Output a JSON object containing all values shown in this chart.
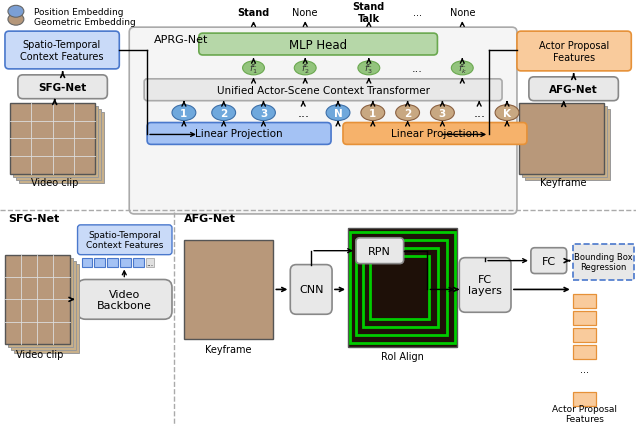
{
  "bg_color": "#ffffff",
  "legend_pos_emb_color": "#7b9fd4",
  "legend_geo_emb_color": "#b5977a",
  "spatio_box_color": "#c9daf8",
  "sfg_box_color": "#e8e8e8",
  "afg_box_color": "#f9cb9c",
  "mlp_head_color": "#b6d7a8",
  "transformer_box_color": "#e8e8e8",
  "linear_proj_blue_color": "#a4c2f4",
  "linear_proj_orange_color": "#f6b26b",
  "aprg_box_color": "#f5f5f5",
  "token_blue_color": "#6fa8dc",
  "token_brown_color": "#c8a882",
  "token_green_color": "#93c47d",
  "gray_box_color": "#e8e8e8",
  "green_roi_color": "#00cc00",
  "labels": {
    "position_embedding": "Position Embedding",
    "geometric_embedding": "Geometric Embedding",
    "spatio_temporal": "Spatio-Temporal\nContext Features",
    "sfg_net_top": "SFG-Net",
    "afg_net_top": "AFG-Net",
    "aprg_net": "APRG-Net",
    "mlp_head": "MLP Head",
    "transformer": "Unified Actor-Scene Context Transformer",
    "linear_proj_left": "Linear Projection",
    "linear_proj_right": "Linear Projection",
    "video_clip_top": "Video clip",
    "keyframe_top": "Keyframe",
    "actor_proposal": "Actor Proposal\nFeatures",
    "sfg_net_bot": "SFG-Net",
    "spatio_bot": "Spatio-Temporal\nContext Features",
    "video_backbone": "Video\nBackbone",
    "video_clip_bot": "Video clip",
    "afg_net_bot": "AFG-Net",
    "keyframe_bot": "Keyframe",
    "cnn": "CNN",
    "roi_align": "RoI Align",
    "rpn": "RPN",
    "fc": "FC",
    "fc_layers": "FC\nlayers",
    "bbox_regression": "Bounding Box\nRegression",
    "actor_proposal_bot": "Actor Proposal\nFeatures"
  }
}
